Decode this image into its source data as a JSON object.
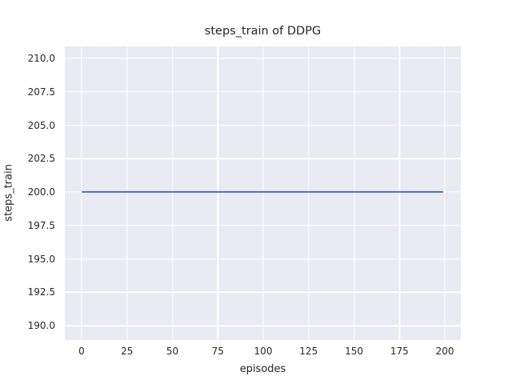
{
  "chart_data": {
    "type": "line",
    "title": "steps_train of DDPG",
    "xlabel": "episodes",
    "ylabel": "steps_train",
    "x_tick_values": [
      0,
      25,
      50,
      75,
      100,
      125,
      150,
      175,
      200
    ],
    "x_tick_labels": [
      "0",
      "25",
      "50",
      "75",
      "100",
      "125",
      "150",
      "175",
      "200"
    ],
    "y_tick_values": [
      210.0,
      207.5,
      205.0,
      202.5,
      200.0,
      197.5,
      195.0,
      192.5,
      190.0
    ],
    "y_tick_labels": [
      "210.0",
      "207.5",
      "205.0",
      "202.5",
      "200.0",
      "197.5",
      "195.0",
      "192.5",
      "190.0"
    ],
    "xlim": [
      -9.25,
      208.8
    ],
    "ylim": [
      188.93,
      210.9
    ],
    "grid": true,
    "legend_position": "none",
    "series": [
      {
        "name": "steps_train",
        "x": [
          0,
          199
        ],
        "y": [
          200,
          200
        ],
        "color": "#4C72B0"
      }
    ],
    "colors": {
      "axes_background": "#EAEAF2",
      "gridline": "#FFFFFF",
      "text": "#262626",
      "figure_background": "#FFFFFF"
    }
  }
}
